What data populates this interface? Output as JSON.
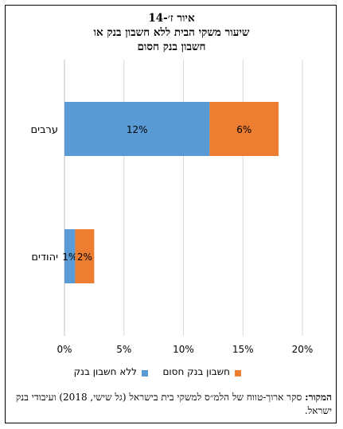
{
  "figure": {
    "title_line1": "איור ז׳-14",
    "title_line2": "שיעור משקי הבית ללא חשבון בנק או",
    "title_line3": "חשבון בנק חסום"
  },
  "chart_data": {
    "type": "bar",
    "orientation": "horizontal",
    "stacked": true,
    "categories": [
      "ערבים",
      "יהודים"
    ],
    "series": [
      {
        "name": "ללא חשבון בנק",
        "values": [
          12.2,
          0.9
        ],
        "labels": [
          "12%",
          "1%"
        ],
        "color": "#5b9bd5"
      },
      {
        "name": "חשבון בנק חסום",
        "values": [
          5.8,
          1.6
        ],
        "labels": [
          "6%",
          "2%"
        ],
        "color": "#ed7d31"
      }
    ],
    "xlim": [
      0,
      20
    ],
    "x_ticks": [
      "0%",
      "5%",
      "10%",
      "15%",
      "20%"
    ],
    "grid": true,
    "legend": "bottom"
  },
  "source": {
    "label": "המקור:",
    "text": "סקר ארוך-טווח של הלמ״ס למשקי בית בישראל (גל שישי, 2018) ועיבודי בנק ישראל."
  }
}
